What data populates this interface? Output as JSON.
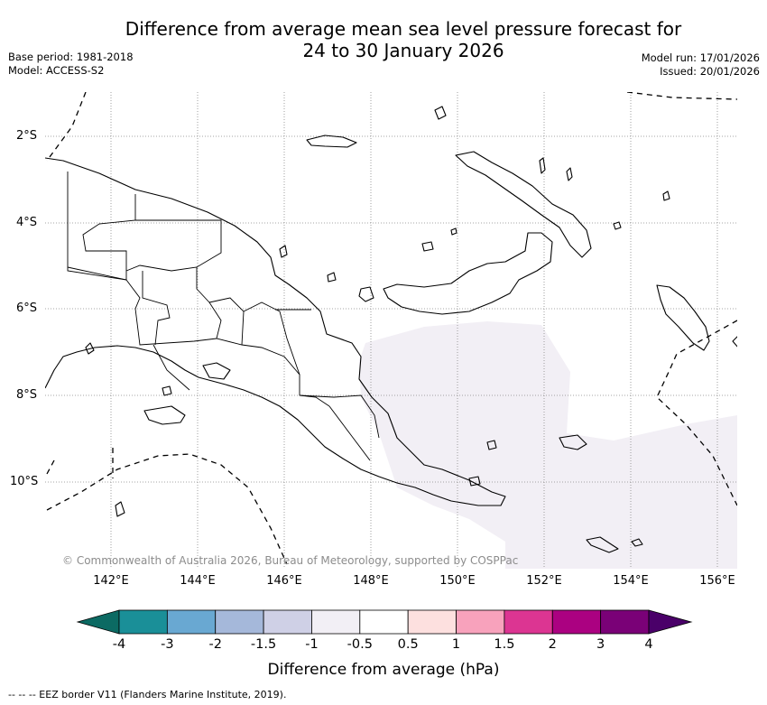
{
  "title_line1": "Difference from average mean sea level pressure forecast for",
  "title_line2": "24 to 30 January 2026",
  "base_period": "Base period: 1981-2018",
  "model": "Model: ACCESS-S2",
  "model_run": "Model run: 17/01/2026",
  "issued": "Issued: 20/01/2026",
  "x_ticks": [
    "142°E",
    "144°E",
    "146°E",
    "148°E",
    "150°E",
    "152°E",
    "154°E",
    "156°E"
  ],
  "y_ticks": [
    "2°S",
    "4°S",
    "6°S",
    "8°S",
    "10°S"
  ],
  "copyright": "© Commonwealth of Australia 2026, Bureau of Meteorology, supported by COSPPac",
  "colorbar": {
    "title": "Difference from average (hPa)",
    "labels": [
      "-4",
      "-3",
      "-2",
      "-1.5",
      "-1",
      "-0.5",
      "0.5",
      "1",
      "1.5",
      "2",
      "3",
      "4"
    ],
    "colors": [
      "#1a8f98",
      "#69a8d2",
      "#a5b8da",
      "#cfd0e6",
      "#f2eff5",
      "#ffffff",
      "#fde0df",
      "#f8a2bc",
      "#dc3592",
      "#ab0181",
      "#7a0177"
    ],
    "under_color": "#0c6a63",
    "over_color": "#4a0069"
  },
  "shaded_field_color": "#f2eff5",
  "eez_legend": "-- -- -- EEZ border V11 (Flanders Marine Institute, 2019)."
}
